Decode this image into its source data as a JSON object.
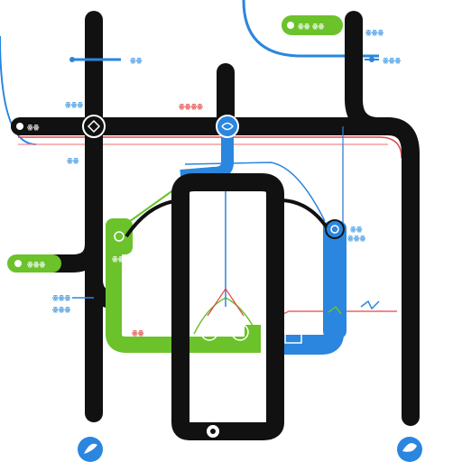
{
  "colors": {
    "black_line": "#111111",
    "blue_line": "#2a86de",
    "green_line": "#6bc22b",
    "red_line": "#e04848",
    "background": "#ffffff"
  },
  "labels": {
    "top_right_green": "ꙮꙮ ꙮꙮ",
    "top_right_blue": "ꙮꙮꙮ",
    "left_upper_blue": "ꙮꙮ",
    "upper_mid_red": "ꙮꙮꙮꙮ",
    "right_upper_blue": "ꙮꙮꙮ",
    "left_station_black": "ꙮꙮ",
    "left_small_green": "ꙮꙮꙮ",
    "left_small_blue": "ꙮꙮ",
    "right_mid_blue_a": "ꙮꙮ",
    "right_mid_blue_b": "ꙮꙮꙮ",
    "left_green_pill": "ꙮꙮꙮ",
    "left_lower_blue_a": "ꙮꙮꙮ",
    "left_lower_blue_b": "ꙮꙮꙮ",
    "green_block_label": "ꙮꙮ",
    "red_right_small": "ꙮꙮ"
  },
  "icons": [
    "station-node-icon",
    "blue-hub-icon",
    "right-station-icon",
    "bottom-left-logo-icon",
    "bottom-right-logo-icon",
    "bottom-center-node-icon"
  ]
}
